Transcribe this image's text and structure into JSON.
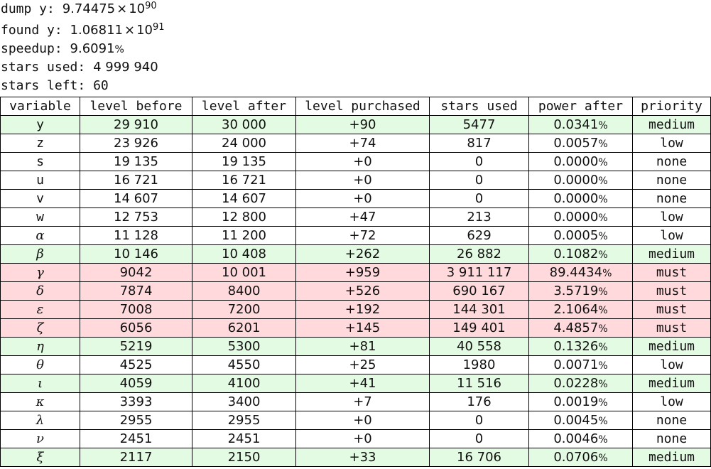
{
  "summary": {
    "dump_label": "dump y:",
    "dump_mantissa": "9.74475",
    "dump_exp": "90",
    "found_label": "found y:",
    "found_mantissa": "1.06811",
    "found_exp": "91",
    "speedup_label": "speedup:",
    "speedup_value": "9.6091",
    "stars_used_label": "stars used:",
    "stars_used_value": "4 999 940",
    "stars_left_label": "stars left:",
    "stars_left_value": "60"
  },
  "table": {
    "headers": [
      "variable",
      "level before",
      "level after",
      "level purchased",
      "stars used",
      "power after",
      "priority"
    ],
    "rows": [
      {
        "variable": "y",
        "level_before": "29 910",
        "level_after": "30 000",
        "purchased": "+90",
        "stars_used": "5477",
        "power_after": "0.0341",
        "priority": "medium"
      },
      {
        "variable": "z",
        "level_before": "23 926",
        "level_after": "24 000",
        "purchased": "+74",
        "stars_used": "817",
        "power_after": "0.0057",
        "priority": "low"
      },
      {
        "variable": "s",
        "level_before": "19 135",
        "level_after": "19 135",
        "purchased": "+0",
        "stars_used": "0",
        "power_after": "0.0000",
        "priority": "none"
      },
      {
        "variable": "u",
        "level_before": "16 721",
        "level_after": "16 721",
        "purchased": "+0",
        "stars_used": "0",
        "power_after": "0.0000",
        "priority": "none"
      },
      {
        "variable": "v",
        "level_before": "14 607",
        "level_after": "14 607",
        "purchased": "+0",
        "stars_used": "0",
        "power_after": "0.0000",
        "priority": "none"
      },
      {
        "variable": "w",
        "level_before": "12 753",
        "level_after": "12 800",
        "purchased": "+47",
        "stars_used": "213",
        "power_after": "0.0000",
        "priority": "low"
      },
      {
        "variable": "α",
        "level_before": "11 128",
        "level_after": "11 200",
        "purchased": "+72",
        "stars_used": "629",
        "power_after": "0.0005",
        "priority": "low"
      },
      {
        "variable": "β",
        "level_before": "10 146",
        "level_after": "10 408",
        "purchased": "+262",
        "stars_used": "26 882",
        "power_after": "0.1082",
        "priority": "medium"
      },
      {
        "variable": "γ",
        "level_before": "9042",
        "level_after": "10 001",
        "purchased": "+959",
        "stars_used": "3 911 117",
        "power_after": "89.4434",
        "priority": "must"
      },
      {
        "variable": "δ",
        "level_before": "7874",
        "level_after": "8400",
        "purchased": "+526",
        "stars_used": "690 167",
        "power_after": "3.5719",
        "priority": "must"
      },
      {
        "variable": "ε",
        "level_before": "7008",
        "level_after": "7200",
        "purchased": "+192",
        "stars_used": "144 301",
        "power_after": "2.1064",
        "priority": "must"
      },
      {
        "variable": "ζ",
        "level_before": "6056",
        "level_after": "6201",
        "purchased": "+145",
        "stars_used": "149 401",
        "power_after": "4.4857",
        "priority": "must"
      },
      {
        "variable": "η",
        "level_before": "5219",
        "level_after": "5300",
        "purchased": "+81",
        "stars_used": "40 558",
        "power_after": "0.1326",
        "priority": "medium"
      },
      {
        "variable": "θ",
        "level_before": "4525",
        "level_after": "4550",
        "purchased": "+25",
        "stars_used": "1980",
        "power_after": "0.0071",
        "priority": "low"
      },
      {
        "variable": "ι",
        "level_before": "4059",
        "level_after": "4100",
        "purchased": "+41",
        "stars_used": "11 516",
        "power_after": "0.0228",
        "priority": "medium"
      },
      {
        "variable": "κ",
        "level_before": "3393",
        "level_after": "3400",
        "purchased": "+7",
        "stars_used": "176",
        "power_after": "0.0019",
        "priority": "low"
      },
      {
        "variable": "λ",
        "level_before": "2955",
        "level_after": "2955",
        "purchased": "+0",
        "stars_used": "0",
        "power_after": "0.0045",
        "priority": "none"
      },
      {
        "variable": "ν",
        "level_before": "2451",
        "level_after": "2451",
        "purchased": "+0",
        "stars_used": "0",
        "power_after": "0.0046",
        "priority": "none"
      },
      {
        "variable": "ξ",
        "level_before": "2117",
        "level_after": "2150",
        "purchased": "+33",
        "stars_used": "16 706",
        "power_after": "0.0706",
        "priority": "medium"
      }
    ]
  },
  "colors": {
    "medium_row": "#e3fbe3",
    "must_row": "#ffd9dc",
    "low_row": "#ffffff",
    "none_row": "#ffffff"
  }
}
